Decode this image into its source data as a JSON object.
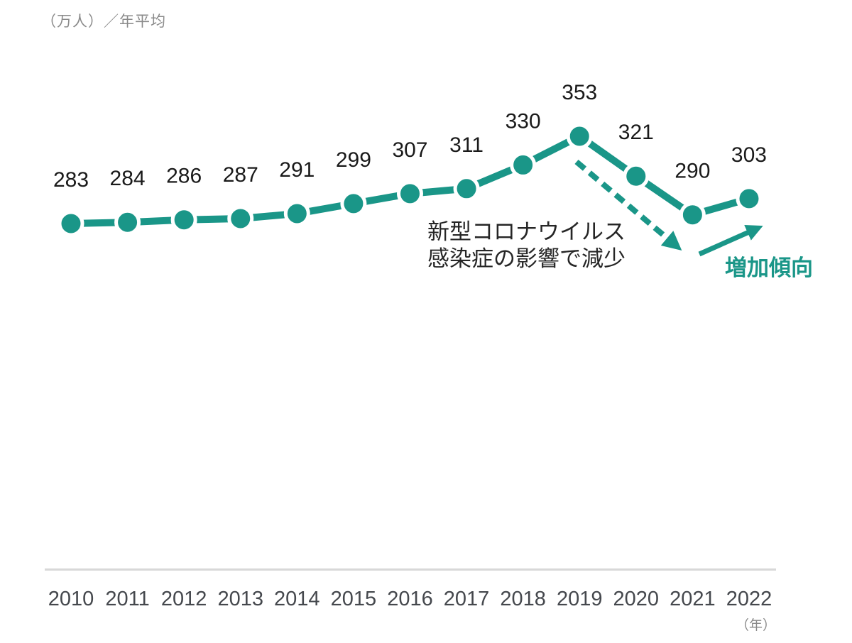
{
  "header": {
    "unit_label": "（万人）／年平均"
  },
  "chart_data": {
    "type": "line",
    "categories": [
      "2010",
      "2011",
      "2012",
      "2013",
      "2014",
      "2015",
      "2016",
      "2017",
      "2018",
      "2019",
      "2020",
      "2021",
      "2022"
    ],
    "values": [
      283,
      284,
      286,
      287,
      291,
      299,
      307,
      311,
      330,
      353,
      321,
      290,
      303
    ],
    "unit_label": "（万人）／年平均",
    "x_axis_unit": "（年）",
    "data_labels_shown": true,
    "grid": false,
    "legend": "none",
    "ylim": [
      265,
      370
    ],
    "annotations": [
      {
        "text": "新型コロナウイルス感染症の影響で減少",
        "target": "decline 2019-2021",
        "arrow": "dashed-down-right"
      },
      {
        "text": "増加傾向",
        "target": "rise 2021-2022",
        "arrow": "solid-up-right"
      }
    ]
  },
  "annotations": {
    "covid_note_line1": "新型コロナウイルス",
    "covid_note_line2": "感染症の影響で減少",
    "trend_note": "増加傾向"
  },
  "footer": {
    "x_axis_unit": "（年）"
  },
  "colors": {
    "series_teal": "#1A9688",
    "data_label": "#1a1a1a",
    "axis_line_gray": "#d8d8d8",
    "tick_label_gray": "#45484d",
    "unit_label_gray": "#8a8a8a",
    "annotation_dark": "#262626"
  }
}
